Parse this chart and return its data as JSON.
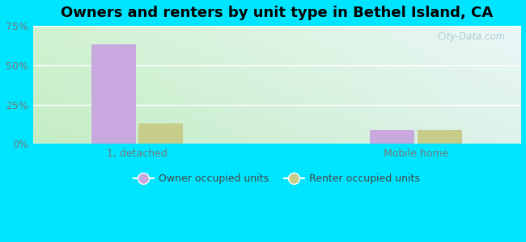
{
  "title": "Owners and renters by unit type in Bethel Island, CA",
  "categories": [
    "1, detached",
    "Mobile home"
  ],
  "owner_values": [
    63,
    9
  ],
  "renter_values": [
    13,
    9
  ],
  "owner_color": "#c9a8e0",
  "renter_color": "#c8cc8a",
  "ylim": [
    0,
    75
  ],
  "yticks": [
    0,
    25,
    50,
    75
  ],
  "ytick_labels": [
    "0%",
    "25%",
    "50%",
    "75%"
  ],
  "bar_width": 0.32,
  "legend_owner": "Owner occupied units",
  "legend_renter": "Renter occupied units",
  "watermark": "City-Data.com",
  "fig_bg": "#00e5ff",
  "plot_bg_left": "#dff5e0",
  "plot_bg_right": "#cff5f5",
  "x_positions": [
    1.0,
    3.0
  ],
  "xlim": [
    0.25,
    3.75
  ],
  "title_fontsize": 13,
  "tick_fontsize": 9,
  "legend_fontsize": 9,
  "grid_color": "#ffffff",
  "tick_color": "#777777"
}
